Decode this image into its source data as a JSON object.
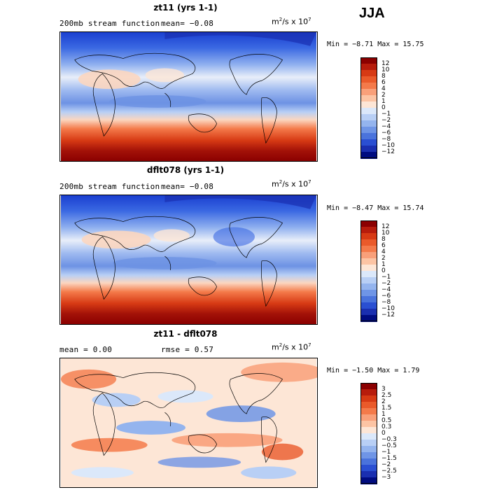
{
  "season": "JJA",
  "panels": [
    {
      "id": "p1",
      "title": "zt11 (yrs 1-1)",
      "subtitle_left": "200mb stream function",
      "mean_text": "mean=  −0.08",
      "units": "m²/s x 10⁷",
      "units_base": "m",
      "units_mid": "/s x 10",
      "units_exp1": "2",
      "units_exp2": "7",
      "minmax": "Min =  −8.71 Max =  15.75",
      "colorbar_labels": [
        "12",
        "10",
        "8",
        "6",
        "4",
        "2",
        "1",
        "0",
        "−1",
        "−2",
        "−4",
        "−6",
        "−8",
        "−10",
        "−12"
      ],
      "colorbar_colors": [
        "#8b0000",
        "#b71c0c",
        "#d73a14",
        "#ea5a2a",
        "#f47a4a",
        "#f9a07a",
        "#fcc4a4",
        "#fde6d6",
        "#dbe8fa",
        "#b8cff5",
        "#94b4ee",
        "#6f95e6",
        "#4a73dc",
        "#2a4fd2",
        "#1a2fb0",
        "#000c80"
      ]
    },
    {
      "id": "p2",
      "title": "dflt078 (yrs 1-1)",
      "subtitle_left": "200mb stream function",
      "mean_text": "mean=  −0.08",
      "units": "m²/s x 10⁷",
      "units_base": "m",
      "units_mid": "/s x 10",
      "units_exp1": "2",
      "units_exp2": "7",
      "minmax": "Min =  −8.47 Max =  15.74",
      "colorbar_labels": [
        "12",
        "10",
        "8",
        "6",
        "4",
        "2",
        "1",
        "0",
        "−1",
        "−2",
        "−4",
        "−6",
        "−8",
        "−10",
        "−12"
      ],
      "colorbar_colors": [
        "#8b0000",
        "#b71c0c",
        "#d73a14",
        "#ea5a2a",
        "#f47a4a",
        "#f9a07a",
        "#fcc4a4",
        "#fde6d6",
        "#dbe8fa",
        "#b8cff5",
        "#94b4ee",
        "#6f95e6",
        "#4a73dc",
        "#2a4fd2",
        "#1a2fb0",
        "#000c80"
      ]
    },
    {
      "id": "p3",
      "title": "zt11 - dflt078",
      "subtitle_left": "mean =    0.00",
      "mean_text": "rmse =   0.57",
      "units": "m²/s x 10⁷",
      "units_base": "m",
      "units_mid": "/s x 10",
      "units_exp1": "2",
      "units_exp2": "7",
      "minmax": "Min =  −1.50 Max =   1.79",
      "colorbar_labels": [
        "3",
        "2.5",
        "2",
        "1.5",
        "1",
        "0.5",
        "0.3",
        "0",
        "−0.3",
        "−0.5",
        "−1",
        "−1.5",
        "−2",
        "−2.5",
        "−3"
      ],
      "colorbar_colors": [
        "#8b0000",
        "#b71c0c",
        "#d73a14",
        "#ea5a2a",
        "#f47a4a",
        "#f9a07a",
        "#fcc4a4",
        "#fde6d6",
        "#dbe8fa",
        "#b8cff5",
        "#94b4ee",
        "#6f95e6",
        "#4a73dc",
        "#2a4fd2",
        "#1a2fb0",
        "#000c80"
      ]
    }
  ]
}
